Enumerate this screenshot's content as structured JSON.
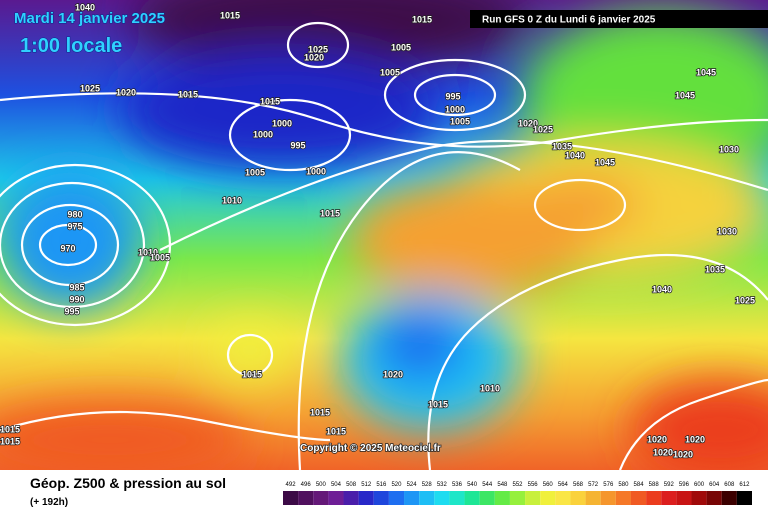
{
  "header": {
    "date": "Mardi 14 janvier 2025",
    "time": "1:00 locale",
    "run": "Run GFS 0 Z du Lundi 6 janvier 2025"
  },
  "map": {
    "copyright": "Copyright © 2025 Meteociel.fr",
    "isobar_labels": [
      1040,
      1015,
      1015,
      1025,
      1020,
      1005,
      1005,
      1025,
      1020,
      1015,
      1015,
      995,
      1000,
      1005,
      1000,
      1000,
      995,
      1020,
      1025,
      1035,
      1040,
      1045,
      1045,
      1045,
      1030,
      1005,
      1000,
      1010,
      1015,
      980,
      975,
      970,
      1010,
      1005,
      985,
      990,
      995,
      1030,
      1035,
      1040,
      1025,
      1015,
      1020,
      1010,
      1015,
      1015,
      1015,
      1015,
      1015,
      1020,
      1020,
      1020,
      1020
    ]
  },
  "footer": {
    "title": "Géop. Z500 & pression au sol",
    "lead": "(+ 192h)"
  },
  "scale": {
    "values": [
      492,
      496,
      500,
      504,
      508,
      512,
      516,
      520,
      524,
      528,
      532,
      536,
      540,
      544,
      548,
      552,
      556,
      560,
      564,
      568,
      572,
      576,
      580,
      584,
      588,
      592,
      596,
      600,
      604,
      608,
      612
    ],
    "colors": [
      "#3c0a46",
      "#50105e",
      "#641878",
      "#6e1e96",
      "#4a1eaa",
      "#2828c8",
      "#1e46dc",
      "#1e6ef0",
      "#1e96f5",
      "#1ebef5",
      "#1edcf0",
      "#1ee6c8",
      "#1ee696",
      "#3ce664",
      "#64eb46",
      "#96f03c",
      "#c8f03c",
      "#f0f03c",
      "#fae646",
      "#fad23c",
      "#f5b432",
      "#f5962d",
      "#f57828",
      "#f05a23",
      "#eb3c1e",
      "#dc1e1e",
      "#c81414",
      "#a00a0a",
      "#780505",
      "#3c0000",
      "#000000"
    ]
  }
}
